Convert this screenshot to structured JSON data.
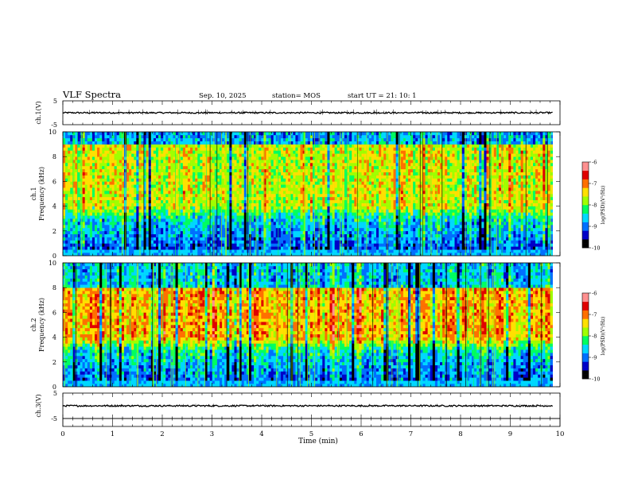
{
  "header": {
    "title": "VLF Spectra",
    "date": "Sep. 10, 2025",
    "station": "station= MOS",
    "start": "start  UT  =  21: 10: 1"
  },
  "chart_data": [
    {
      "type": "line",
      "name": "ch1-waveform",
      "ylabel": "ch.1(V)",
      "ylim": [
        -5,
        5
      ],
      "yticks": [
        "5",
        "-5"
      ],
      "xlim": [
        0,
        10
      ],
      "series": [
        {
          "baseline": 0,
          "noise_amplitude": 0.3,
          "spike_amplitude": 1.5
        }
      ]
    },
    {
      "type": "heatmap",
      "name": "ch1-spectrogram",
      "ylabel": "ch.1",
      "ylabel2": "Frequency (kHz)",
      "ylim": [
        0,
        10
      ],
      "yticks": [
        "0",
        "2",
        "4",
        "6",
        "8",
        "10"
      ],
      "xlim": [
        0,
        9.85
      ],
      "colorbar": {
        "min": -10,
        "max": -6,
        "ticks": [
          "-6",
          "-7",
          "-8",
          "-9",
          "-10"
        ],
        "label": "log(PSD)(V²/Hz)"
      },
      "description_levels": {
        "low_freq_0_3kHz": -9.3,
        "mid_freq_4_9kHz": -7.6,
        "top_9_10kHz": -8.8
      }
    },
    {
      "type": "heatmap",
      "name": "ch2-spectrogram",
      "ylabel": "ch.2",
      "ylabel2": "Frequency (kHz)",
      "ylim": [
        0,
        10
      ],
      "yticks": [
        "0",
        "2",
        "4",
        "6",
        "8",
        "10"
      ],
      "xlim": [
        0,
        9.85
      ],
      "colorbar": {
        "min": -10,
        "max": -6,
        "ticks": [
          "-6",
          "-7",
          "-8",
          "-9",
          "-10"
        ],
        "label": "log(PSD)(V²/Hz)"
      },
      "description_levels": {
        "low_freq_0_3kHz": -9.2,
        "mid_freq_4_8kHz": -7.2,
        "top_8_10kHz": -8.6
      }
    },
    {
      "type": "line",
      "name": "ch3-waveform",
      "ylabel": "ch.3(V)",
      "ylim": [
        -5,
        5
      ],
      "yticks": [
        "5",
        "-5"
      ],
      "xlim": [
        0,
        10
      ],
      "series": [
        {
          "baseline": 0,
          "noise_amplitude": 0.3,
          "spike_amplitude": 0.8
        }
      ]
    }
  ],
  "xaxis": {
    "label": "Time  (min)",
    "ticks": [
      "0",
      "1",
      "2",
      "3",
      "4",
      "5",
      "6",
      "7",
      "8",
      "9",
      "10"
    ]
  },
  "colors": {
    "colormap": [
      "#000000",
      "#0000c8",
      "#0070ff",
      "#00d8ff",
      "#00ff60",
      "#a0ff00",
      "#ffe000",
      "#ff7000",
      "#e00000",
      "#ff9090"
    ]
  }
}
